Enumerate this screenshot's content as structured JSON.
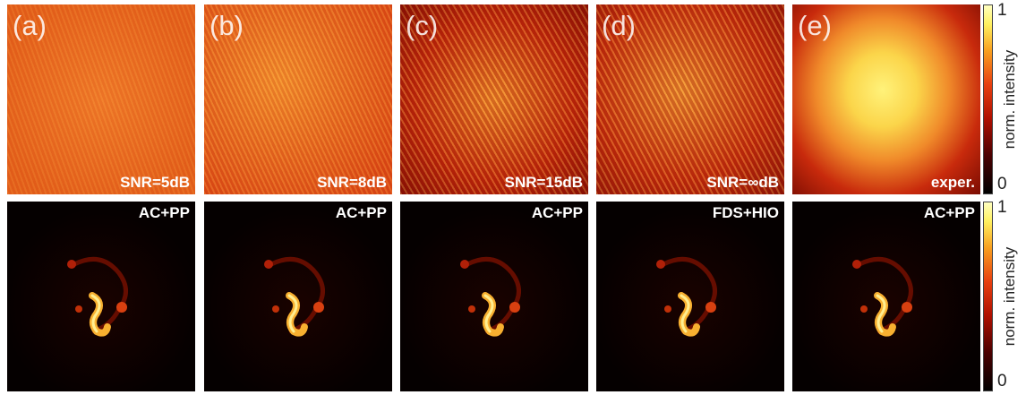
{
  "panels": [
    {
      "label": "(a)",
      "top_note": "SNR=5dB",
      "bottom_note": "AC+PP"
    },
    {
      "label": "(b)",
      "top_note": "SNR=8dB",
      "bottom_note": "AC+PP"
    },
    {
      "label": "(c)",
      "top_note": "SNR=15dB",
      "bottom_note": "AC+PP"
    },
    {
      "label": "(d)",
      "top_note": "SNR=∞dB",
      "bottom_note": "FDS+HIO"
    },
    {
      "label": "(e)",
      "top_note": "exper.",
      "bottom_note": "AC+PP"
    }
  ],
  "colorbars": [
    {
      "max": "1",
      "min": "0",
      "label": "norm. intensity"
    },
    {
      "max": "1",
      "min": "0",
      "label": "norm. intensity"
    }
  ]
}
